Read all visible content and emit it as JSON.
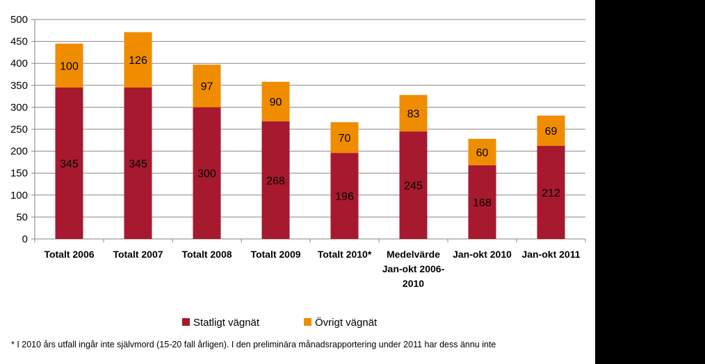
{
  "chart_data": {
    "type": "bar",
    "stacked": true,
    "categories": [
      [
        "Totalt 2006"
      ],
      [
        "Totalt 2007"
      ],
      [
        "Totalt 2008"
      ],
      [
        "Totalt 2009"
      ],
      [
        "Totalt 2010*"
      ],
      [
        "Medelvärde",
        "Jan-okt 2006-",
        "2010"
      ],
      [
        "Jan-okt 2010"
      ],
      [
        "Jan-okt 2011"
      ]
    ],
    "series": [
      {
        "name": "Statligt vägnät",
        "color": "#A6192E",
        "values": [
          345,
          345,
          300,
          268,
          196,
          245,
          168,
          212
        ]
      },
      {
        "name": "Övrigt vägnät",
        "color": "#F08C00",
        "values": [
          100,
          126,
          97,
          90,
          70,
          83,
          60,
          69
        ]
      }
    ],
    "ylim": [
      0,
      500
    ],
    "yticks": [
      0,
      50,
      100,
      150,
      200,
      250,
      300,
      350,
      400,
      450,
      500
    ],
    "grid": true,
    "legend": "bottom-center",
    "footnote": "* I 2010 års utfall ingår inte självmord (15-20 fall årligen). I den preliminära månadsrapportering under 2011 har dess ännu inte"
  }
}
